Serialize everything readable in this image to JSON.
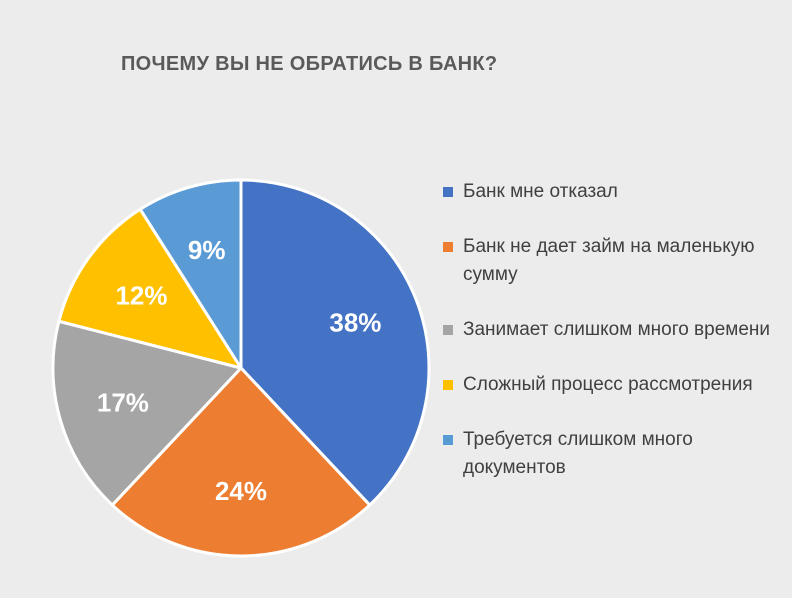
{
  "chart_data": {
    "type": "pie",
    "title": "ПОЧЕМУ ВЫ НЕ ОБРАТИСЬ В БАНК?",
    "legend_position": "right",
    "slices": [
      {
        "label": "Банк мне отказал",
        "value": 38,
        "value_label": "38%",
        "color": "#4472c4"
      },
      {
        "label": "Банк не дает займ на маленькую сумму",
        "value": 24,
        "value_label": "24%",
        "color": "#ed7d31"
      },
      {
        "label": "Занимает слишком много времени",
        "value": 17,
        "value_label": "17%",
        "color": "#a5a5a5"
      },
      {
        "label": "Сложный процесс рассмотрения",
        "value": 12,
        "value_label": "12%",
        "color": "#ffc000"
      },
      {
        "label": "Требуется слишком много документов",
        "value": 9,
        "value_label": "9%",
        "color": "#5b9bd5"
      }
    ]
  }
}
